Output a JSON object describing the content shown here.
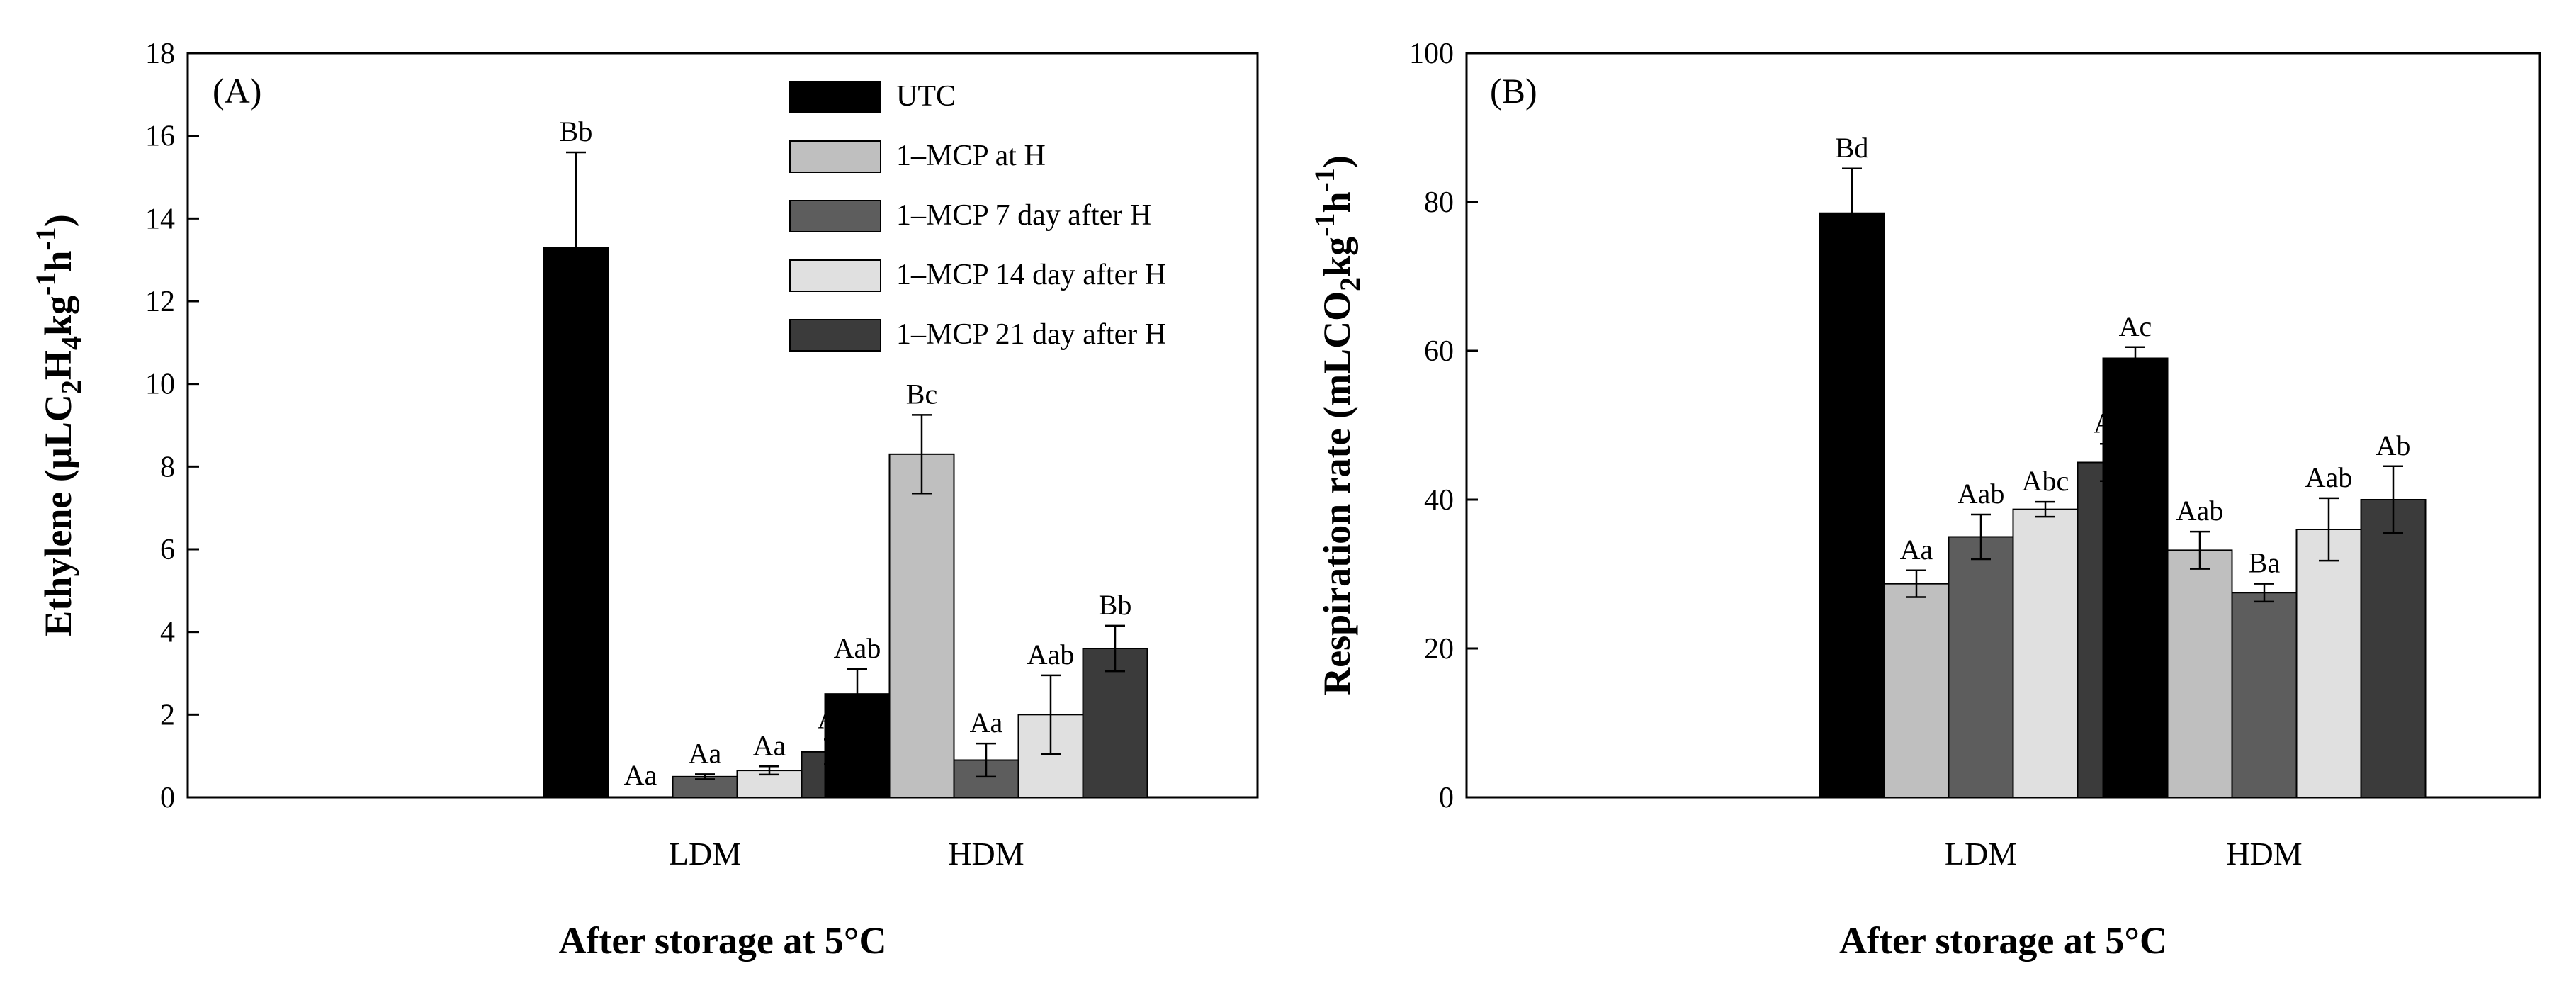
{
  "chart_data": [
    {
      "type": "bar",
      "panel_label": "(A)",
      "categories": [
        "LDM",
        "HDM"
      ],
      "series": [
        {
          "name": "UTC",
          "color": "#000000",
          "values": [
            13.3,
            2.5
          ],
          "errors": [
            2.3,
            0.6
          ],
          "labels": [
            "Bb",
            "Aab"
          ]
        },
        {
          "name": "1–MCP at H",
          "color": "#bfbfbf",
          "values": [
            0.0,
            8.3
          ],
          "errors": [
            0.0,
            0.95
          ],
          "labels": [
            "Aa",
            "Bc"
          ]
        },
        {
          "name": "1–MCP 7 day after H",
          "color": "#5d5d5d",
          "values": [
            0.5,
            0.9
          ],
          "errors": [
            0.06,
            0.4
          ],
          "labels": [
            "Aa",
            "Aa"
          ]
        },
        {
          "name": "1–MCP 14 day after H",
          "color": "#e0e0e0",
          "values": [
            0.65,
            2.0
          ],
          "errors": [
            0.1,
            0.95
          ],
          "labels": [
            "Aa",
            "Aab"
          ]
        },
        {
          "name": "1–MCP  21 day after H",
          "color": "#3b3b3b",
          "values": [
            1.1,
            3.6
          ],
          "errors": [
            0.3,
            0.55
          ],
          "labels": [
            "Aa",
            "Bb"
          ]
        }
      ],
      "ylim": [
        0,
        18
      ],
      "yticks": [
        "0",
        "2",
        "4",
        "6",
        "8",
        "10",
        "12",
        "14",
        "16",
        "18"
      ],
      "ylabel_parts": [
        "Ethylene (µLC",
        "2",
        "H",
        "4",
        "kg",
        "-1",
        "h",
        "-1",
        ")"
      ],
      "xlabel": "After storage at 5°C",
      "legend_position": "top-right"
    },
    {
      "type": "bar",
      "panel_label": "(B)",
      "categories": [
        "LDM",
        "HDM"
      ],
      "series": [
        {
          "name": "UTC",
          "color": "#000000",
          "values": [
            78.5,
            59.0
          ],
          "errors": [
            6.0,
            1.5
          ],
          "labels": [
            "Bd",
            "Ac"
          ]
        },
        {
          "name": "1–MCP at H",
          "color": "#bfbfbf",
          "values": [
            28.7,
            33.2
          ],
          "errors": [
            1.8,
            2.5
          ],
          "labels": [
            "Aa",
            "Aab"
          ]
        },
        {
          "name": "1–MCP 7 day after H",
          "color": "#5d5d5d",
          "values": [
            35.0,
            27.5
          ],
          "errors": [
            3.0,
            1.2
          ],
          "labels": [
            "Aab",
            "Ba"
          ]
        },
        {
          "name": "1–MCP 14 day after H",
          "color": "#e0e0e0",
          "values": [
            38.7,
            36.0
          ],
          "errors": [
            1.0,
            4.2
          ],
          "labels": [
            "Abc",
            "Aab"
          ]
        },
        {
          "name": "1–MCP  21 day after H",
          "color": "#3b3b3b",
          "values": [
            45.0,
            40.0
          ],
          "errors": [
            2.5,
            4.5
          ],
          "labels": [
            "Ac",
            "Ab"
          ]
        }
      ],
      "ylim": [
        0,
        100
      ],
      "yticks": [
        "0",
        "20",
        "40",
        "60",
        "80",
        "100"
      ],
      "ylabel_parts": [
        "Respiration rate (mLCO",
        "2",
        "kg",
        "-1",
        "h",
        "-1",
        ")"
      ],
      "xlabel": "After storage at 5°C",
      "legend_position": "none"
    }
  ]
}
